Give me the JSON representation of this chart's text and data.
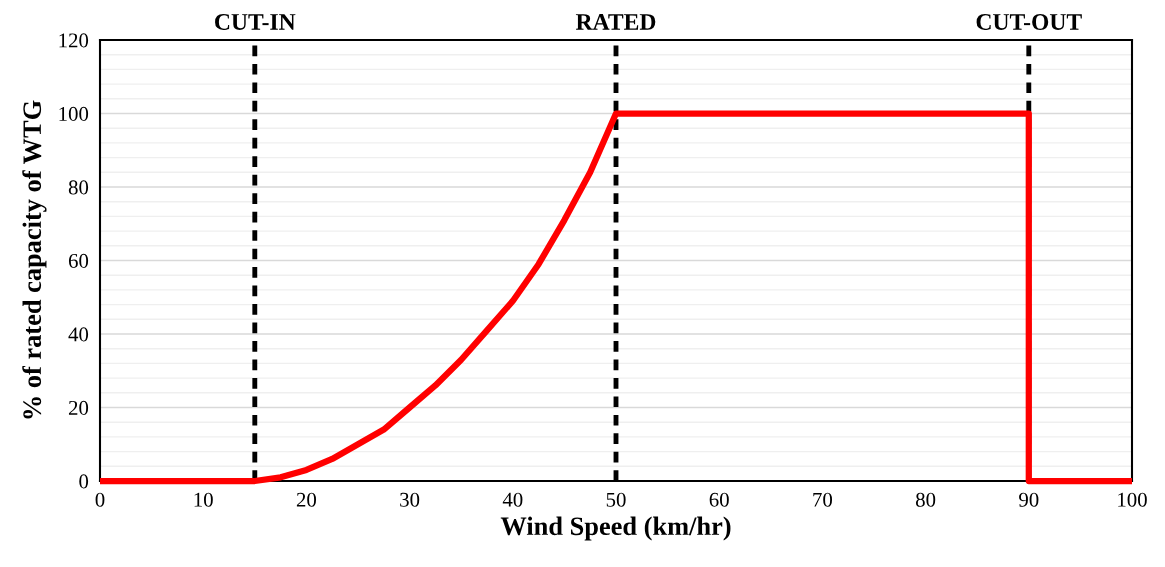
{
  "chart_data": {
    "type": "line",
    "xlabel": "Wind Speed (km/hr)",
    "ylabel": "% of rated capacity of WTG",
    "series": [
      {
        "color": "#ff0000",
        "x": [
          0,
          15,
          17.5,
          20,
          22.5,
          25,
          27.5,
          30,
          32.5,
          35,
          37.5,
          40,
          42.5,
          45,
          47.5,
          50,
          90,
          90,
          100
        ],
        "values": [
          0,
          0,
          1,
          3,
          6,
          10,
          14,
          20,
          26,
          33,
          41,
          49,
          59,
          71,
          84,
          100,
          100,
          0,
          0
        ]
      }
    ],
    "xlim": [
      0,
      100
    ],
    "xticks": [
      0,
      10,
      20,
      30,
      40,
      50,
      60,
      70,
      80,
      90,
      100
    ],
    "ylim": [
      0,
      120
    ],
    "yticks": [
      0,
      20,
      40,
      60,
      80,
      100,
      120
    ],
    "grid": "y",
    "marker": "none",
    "line_style": "solid",
    "ref_lines": [
      {
        "axis": "x",
        "value": 15,
        "label": "CUT-IN",
        "color": "#000000",
        "line_style": "dashed"
      },
      {
        "axis": "x",
        "value": 50,
        "label": "RATED",
        "color": "#000000",
        "line_style": "dashed"
      },
      {
        "axis": "x",
        "value": 90,
        "label": "CUT-OUT",
        "color": "#000000",
        "line_style": "dashed"
      }
    ]
  }
}
